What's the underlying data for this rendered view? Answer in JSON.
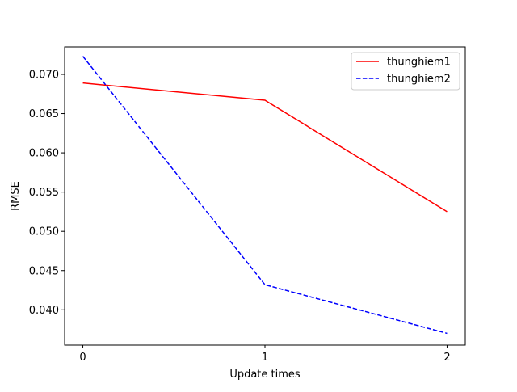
{
  "chart_data": {
    "type": "line",
    "title": "",
    "xlabel": "Update times",
    "ylabel": "RMSE",
    "x": [
      0,
      1,
      2
    ],
    "x_ticks": [
      "0",
      "1",
      "2"
    ],
    "y_ticks": [
      "0.040",
      "0.045",
      "0.050",
      "0.055",
      "0.060",
      "0.065",
      "0.070"
    ],
    "xlim": [
      -0.1,
      2.1
    ],
    "ylim": [
      0.0355,
      0.0735
    ],
    "grid": false,
    "legend_position": "top-right",
    "series": [
      {
        "name": "thunghiem1",
        "values": [
          0.0689,
          0.0667,
          0.0525
        ],
        "color": "#ff0000",
        "line_style": "solid"
      },
      {
        "name": "thunghiem2",
        "values": [
          0.0723,
          0.0432,
          0.037
        ],
        "color": "#0000ff",
        "line_style": "dashed"
      }
    ]
  }
}
